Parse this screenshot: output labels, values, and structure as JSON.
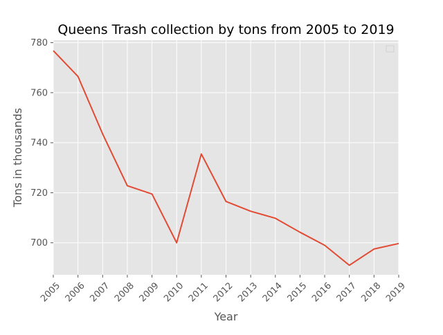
{
  "chart_data": {
    "type": "line",
    "title": "Queens Trash collection by tons from 2005 to 2019",
    "xlabel": "Year",
    "ylabel": "Tons in thousands",
    "categories": [
      "2005",
      "2006",
      "2007",
      "2008",
      "2009",
      "2010",
      "2011",
      "2012",
      "2013",
      "2014",
      "2015",
      "2016",
      "2017",
      "2018",
      "2019"
    ],
    "series": [
      {
        "values": [
          776.8,
          766.5,
          743.5,
          722.8,
          719.5,
          700.0,
          735.5,
          716.5,
          712.6,
          709.8,
          704.2,
          699.0,
          691.0,
          697.5,
          699.7
        ],
        "color": "#e24a33"
      }
    ],
    "ylim": [
      687.2,
      781.0
    ],
    "yticks": [
      700,
      720,
      740,
      760,
      780
    ],
    "grid": true,
    "legend": "top-right",
    "background": "#e5e5e5"
  }
}
